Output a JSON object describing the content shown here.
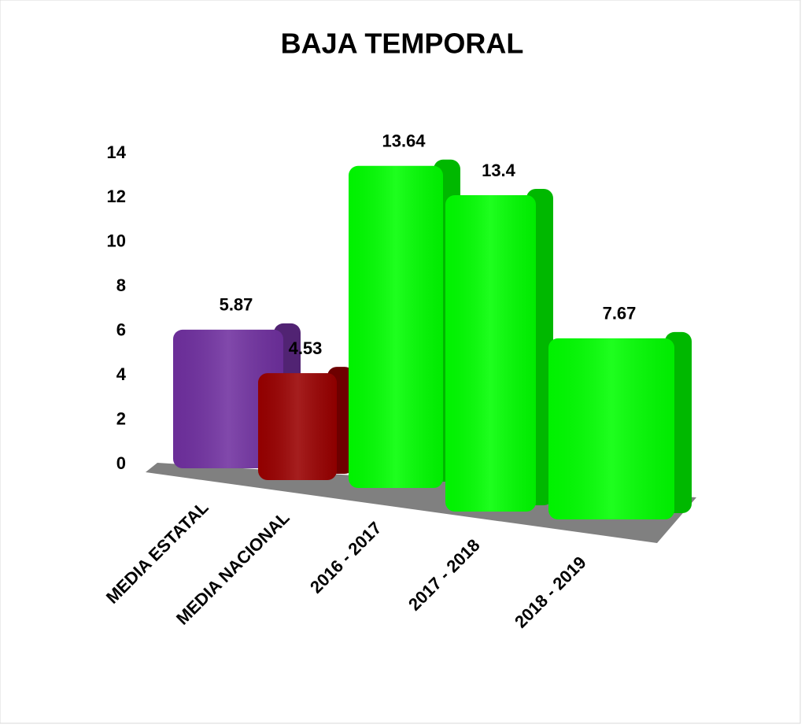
{
  "chart_data": {
    "type": "bar",
    "title": "BAJA TEMPORAL",
    "categories": [
      "MEDIA ESTATAL",
      "MEDIA NACIONAL",
      "2016 - 2017",
      "2017 - 2018",
      "2018 - 2019"
    ],
    "values": [
      5.87,
      4.53,
      13.64,
      13.4,
      7.67
    ],
    "colors": [
      "#7030a0",
      "#990000",
      "#00ff00",
      "#00ff00",
      "#00ff00"
    ],
    "ylim": [
      0,
      14
    ],
    "yticks": [
      0,
      2,
      4,
      6,
      8,
      10,
      12,
      14
    ],
    "grid": false
  }
}
